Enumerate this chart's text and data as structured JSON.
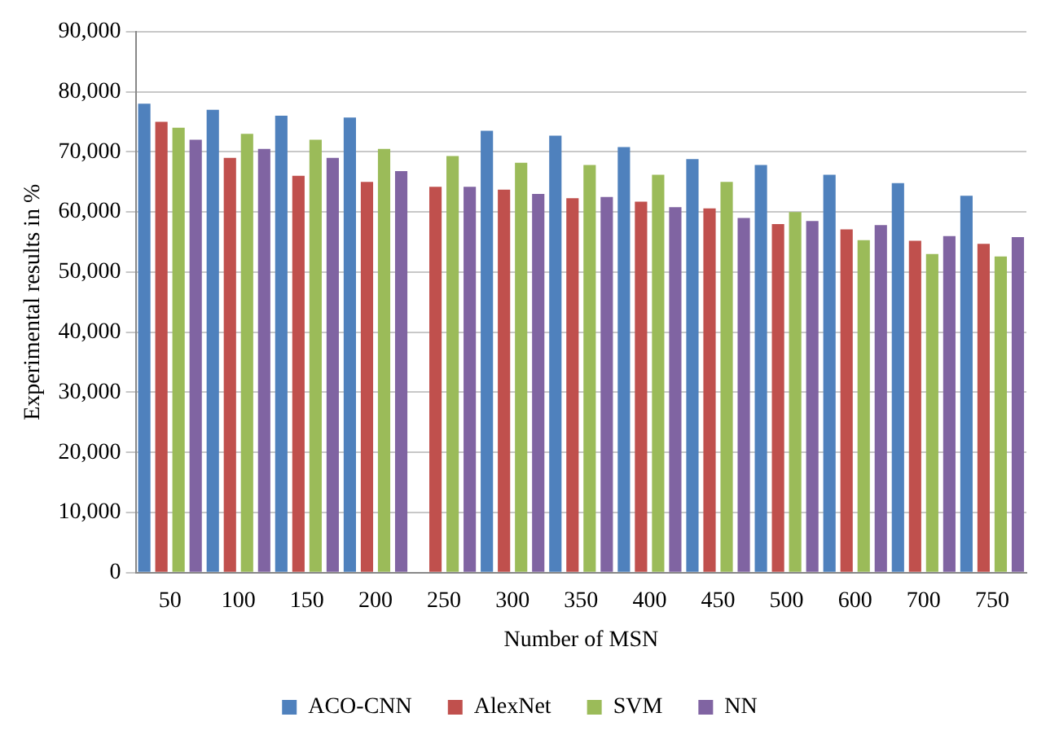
{
  "chart_data": {
    "type": "bar",
    "xlabel": "Number of MSN",
    "ylabel": "Experimental results in %",
    "categories": [
      "50",
      "100",
      "150",
      "200",
      "250",
      "300",
      "350",
      "400",
      "450",
      "500",
      "600",
      "700",
      "750"
    ],
    "series": [
      {
        "name": "ACO-CNN",
        "color": "#4f81bd",
        "values": [
          78000,
          77000,
          76000,
          75700,
          null,
          73500,
          72700,
          70800,
          68800,
          67800,
          66200,
          64800,
          62700
        ]
      },
      {
        "name": "AlexNet",
        "color": "#c0504d",
        "values": [
          75000,
          69000,
          66000,
          65000,
          64200,
          63700,
          62300,
          61700,
          60600,
          58000,
          57100,
          55200,
          54700
        ]
      },
      {
        "name": "SVM",
        "color": "#9bbb59",
        "values": [
          74000,
          73000,
          72000,
          70500,
          69300,
          68200,
          67800,
          66200,
          65000,
          60000,
          55300,
          53000,
          52600
        ]
      },
      {
        "name": "NN",
        "color": "#8064a2",
        "values": [
          72000,
          70500,
          69000,
          66800,
          64200,
          63000,
          62500,
          60800,
          59000,
          58500,
          57800,
          56000,
          55800
        ]
      }
    ],
    "ylim": [
      0,
      90000
    ],
    "yticks": [
      0,
      {
        "value": 10000,
        "label": "10,000"
      },
      {
        "value": 20000,
        "label": "20,000"
      },
      {
        "value": 30000,
        "label": "30,000"
      },
      {
        "value": 40000,
        "label": "40,000"
      },
      {
        "value": 50000,
        "label": "50,000"
      },
      {
        "value": 60000,
        "label": "60,000"
      },
      {
        "value": 70000,
        "label": "70,000"
      },
      {
        "value": 80000,
        "label": "80,000"
      },
      {
        "value": 90000,
        "label": "90,000"
      }
    ],
    "grid": "y",
    "legend": "bottom"
  }
}
